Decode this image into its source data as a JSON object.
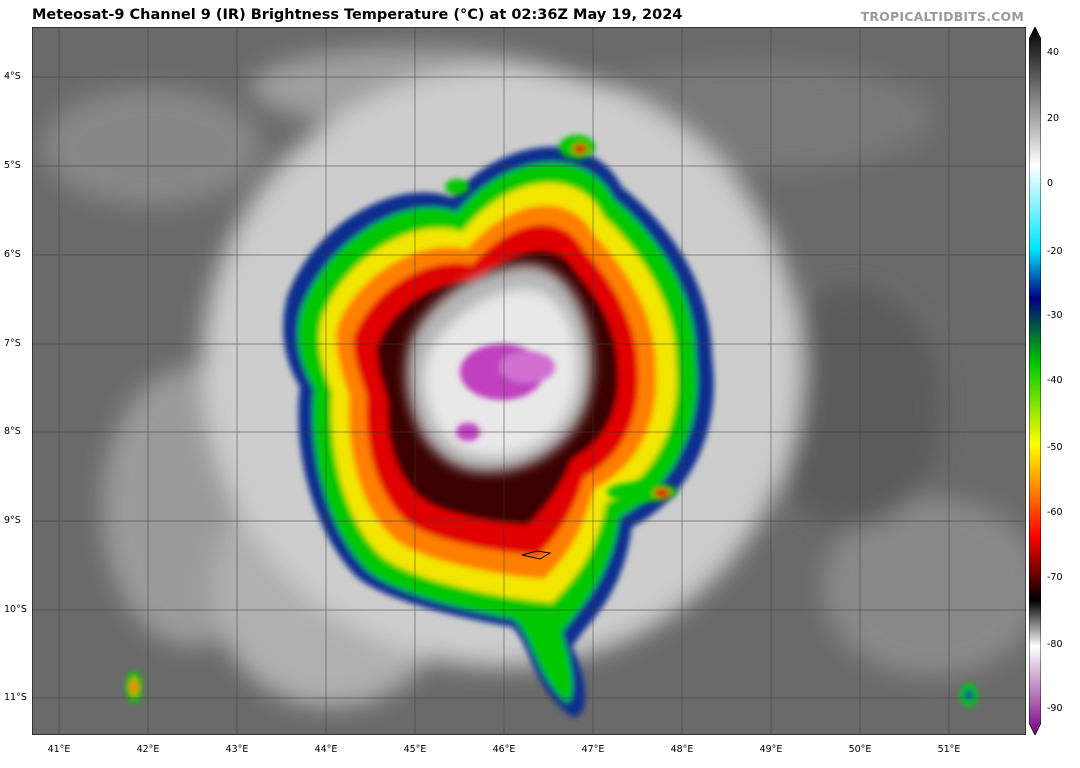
{
  "header": {
    "title": "Meteosat-9 Channel 9 (IR) Brightness Temperature (°C) at 02:36Z May 19, 2024",
    "brand": "TROPICALTIDBITS.COM"
  },
  "map": {
    "lat_labels": [
      "4°S",
      "5°S",
      "6°S",
      "7°S",
      "8°S",
      "9°S",
      "10°S",
      "11°S"
    ],
    "lon_labels": [
      "41°E",
      "42°E",
      "43°E",
      "44°E",
      "45°E",
      "46°E",
      "47°E",
      "48°E",
      "49°E",
      "50°E",
      "51°E"
    ]
  },
  "colorbar": {
    "tick_labels": [
      "40",
      "20",
      "0",
      "-20",
      "-30",
      "-40",
      "-50",
      "-60",
      "-70",
      "-80",
      "-90"
    ],
    "stops": [
      {
        "value": 40,
        "color": "#000000"
      },
      {
        "value": 0,
        "color": "#ffffff"
      },
      {
        "value": -20,
        "color": "#00e5ff"
      },
      {
        "value": -30,
        "color": "#000080"
      },
      {
        "value": -40,
        "color": "#00c800"
      },
      {
        "value": -50,
        "color": "#ffff00"
      },
      {
        "value": -60,
        "color": "#ff0000"
      },
      {
        "value": -70,
        "color": "#000000"
      },
      {
        "value": -80,
        "color": "#ffffff"
      },
      {
        "value": -90,
        "color": "#7a0080"
      }
    ]
  }
}
